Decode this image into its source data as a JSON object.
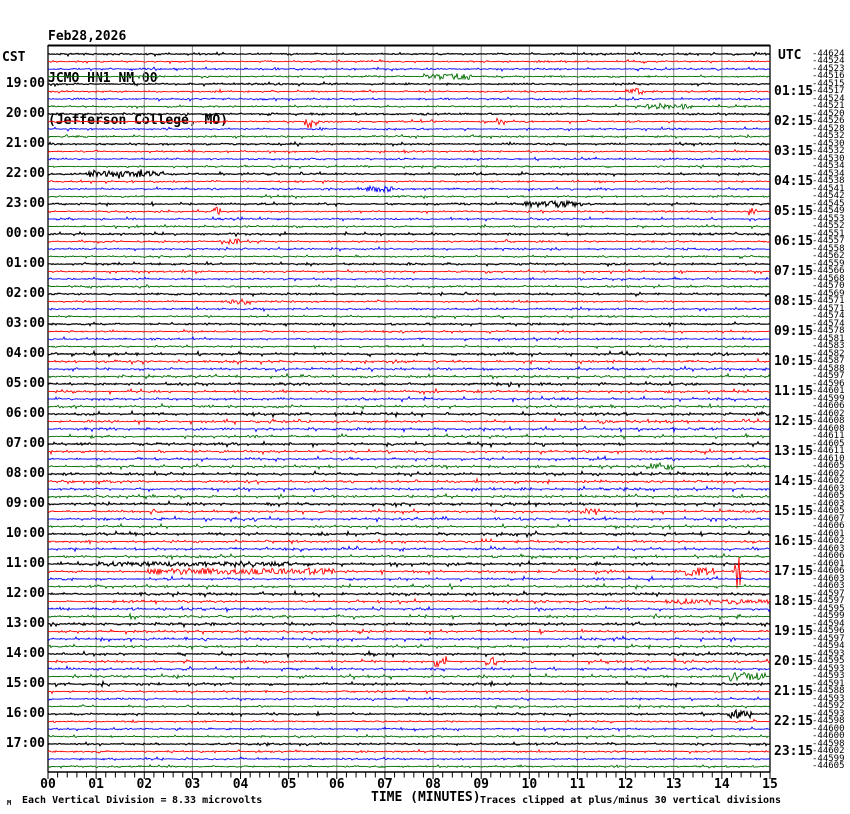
{
  "header": {
    "date": "Feb28,2026",
    "station": "JCMO HN1 NM 00",
    "location": "(Jefferson College, MO)"
  },
  "axis": {
    "left_timezone": "CST",
    "right_timezone": "UTC",
    "x_title": "TIME (MINUTES)",
    "x_ticks": [
      "00",
      "01",
      "02",
      "03",
      "04",
      "05",
      "06",
      "07",
      "08",
      "09",
      "10",
      "11",
      "12",
      "13",
      "14",
      "15"
    ]
  },
  "footer": {
    "logo_glyph": "M",
    "scale_label": "Each Vertical Division =",
    "scale_value": "8.33 microvolts",
    "clip_note": "Traces clipped at plus/minus 30 vertical divisions"
  },
  "chart_data": {
    "type": "line",
    "kind": "helicorder-seismogram",
    "title": "JCMO HN1 NM 00 (Jefferson College, MO) Feb28,2026",
    "xlabel": "TIME (MINUTES)",
    "x_range_minutes": [
      0,
      15
    ],
    "row_interval_minutes": 15,
    "rows_per_hour": 4,
    "first_row_cst": "18:00",
    "last_row_cst": "17:45",
    "grid": true,
    "grid_color": "#8a8a8a",
    "trace_colors_cycle": [
      "#000000",
      "#ff0000",
      "#0000ff",
      "#006e00"
    ],
    "left_hour_labels_cst": [
      "19:00",
      "20:00",
      "21:00",
      "22:00",
      "23:00",
      "00:00",
      "01:00",
      "02:00",
      "03:00",
      "04:00",
      "05:00",
      "06:00",
      "07:00",
      "08:00",
      "09:00",
      "10:00",
      "11:00",
      "12:00",
      "13:00",
      "14:00",
      "15:00",
      "16:00",
      "17:00"
    ],
    "right_hour_labels_utc": [
      "01:15",
      "02:15",
      "03:15",
      "04:15",
      "05:15",
      "06:15",
      "07:15",
      "08:15",
      "09:15",
      "10:15",
      "11:15",
      "12:15",
      "13:15",
      "14:15",
      "15:15",
      "16:15",
      "17:15",
      "18:15",
      "19:15",
      "20:15",
      "21:15",
      "22:15",
      "23:15"
    ],
    "row_offset_labels": [
      -44624,
      -44524,
      -44523,
      -44516,
      -44515,
      -44517,
      -44524,
      -44521,
      -44520,
      -44526,
      -44528,
      -44532,
      -44530,
      -44532,
      -44530,
      -44534,
      -44534,
      -44538,
      -44541,
      -44542,
      -44545,
      -44549,
      -44553,
      -44552,
      -44551,
      -44557,
      -44558,
      -44562,
      -44559,
      -44566,
      -44568,
      -44570,
      -44569,
      -44571,
      -44571,
      -44574,
      -44574,
      -44578,
      -44581,
      -44583,
      -44582,
      -44587,
      -44588,
      -44597,
      -44596,
      -44601,
      -44599,
      -44606,
      -44602,
      -44608,
      -44608,
      -44611,
      -44605,
      -44611,
      -44610,
      -44605,
      -44602,
      -44602,
      -44603,
      -44605,
      -44603,
      -44605,
      -44607,
      -44606,
      -44601,
      -44602,
      -44603,
      -44606,
      -44601,
      -44606,
      -44603,
      -44603,
      -44597,
      -44597,
      -44595,
      -44599,
      -44594,
      -44596,
      -44597,
      -44594,
      -44593,
      -44595,
      -44593,
      -44593,
      -44591,
      -44588,
      -44593,
      -44592,
      -44593,
      -44598,
      -44600,
      -44600,
      -44598,
      -44602,
      -44599,
      -44605
    ],
    "events": [
      {
        "row": 3,
        "m": 8.3,
        "w": 0.5,
        "amp": 3
      },
      {
        "row": 5,
        "m": 12.2,
        "w": 0.2,
        "amp": 3
      },
      {
        "row": 7,
        "m": 12.9,
        "w": 0.5,
        "amp": 3
      },
      {
        "row": 9,
        "m": 5.45,
        "w": 0.12,
        "amp": 7
      },
      {
        "row": 9,
        "m": 9.4,
        "w": 0.1,
        "amp": 5
      },
      {
        "row": 16,
        "m": 1.6,
        "w": 0.8,
        "amp": 3
      },
      {
        "row": 18,
        "m": 6.9,
        "w": 0.3,
        "amp": 3
      },
      {
        "row": 20,
        "m": 10.5,
        "w": 0.6,
        "amp": 3
      },
      {
        "row": 21,
        "m": 3.5,
        "w": 0.1,
        "amp": 6
      },
      {
        "row": 21,
        "m": 14.65,
        "w": 0.1,
        "amp": 6
      },
      {
        "row": 25,
        "m": 3.8,
        "w": 0.2,
        "amp": 3
      },
      {
        "row": 33,
        "m": 4.0,
        "w": 0.2,
        "amp": 3
      },
      {
        "row": 55,
        "m": 12.7,
        "w": 0.3,
        "amp": 3
      },
      {
        "row": 61,
        "m": 11.3,
        "w": 0.15,
        "amp": 4
      },
      {
        "row": 68,
        "m": 3.0,
        "w": 2.0,
        "amp": 2
      },
      {
        "row": 69,
        "m": 4.0,
        "w": 2.0,
        "amp": 3
      },
      {
        "row": 69,
        "m": 13.55,
        "w": 0.3,
        "amp": 4
      },
      {
        "row": 69,
        "m": 14.32,
        "w": 0.06,
        "amp": 20
      },
      {
        "row": 73,
        "m": 14.0,
        "w": 1.2,
        "amp": 2
      },
      {
        "row": 81,
        "m": 8.15,
        "w": 0.12,
        "amp": 7
      },
      {
        "row": 81,
        "m": 9.2,
        "w": 0.12,
        "amp": 4
      },
      {
        "row": 83,
        "m": 14.5,
        "w": 0.4,
        "amp": 4
      },
      {
        "row": 88,
        "m": 14.4,
        "w": 0.25,
        "amp": 4
      }
    ]
  }
}
